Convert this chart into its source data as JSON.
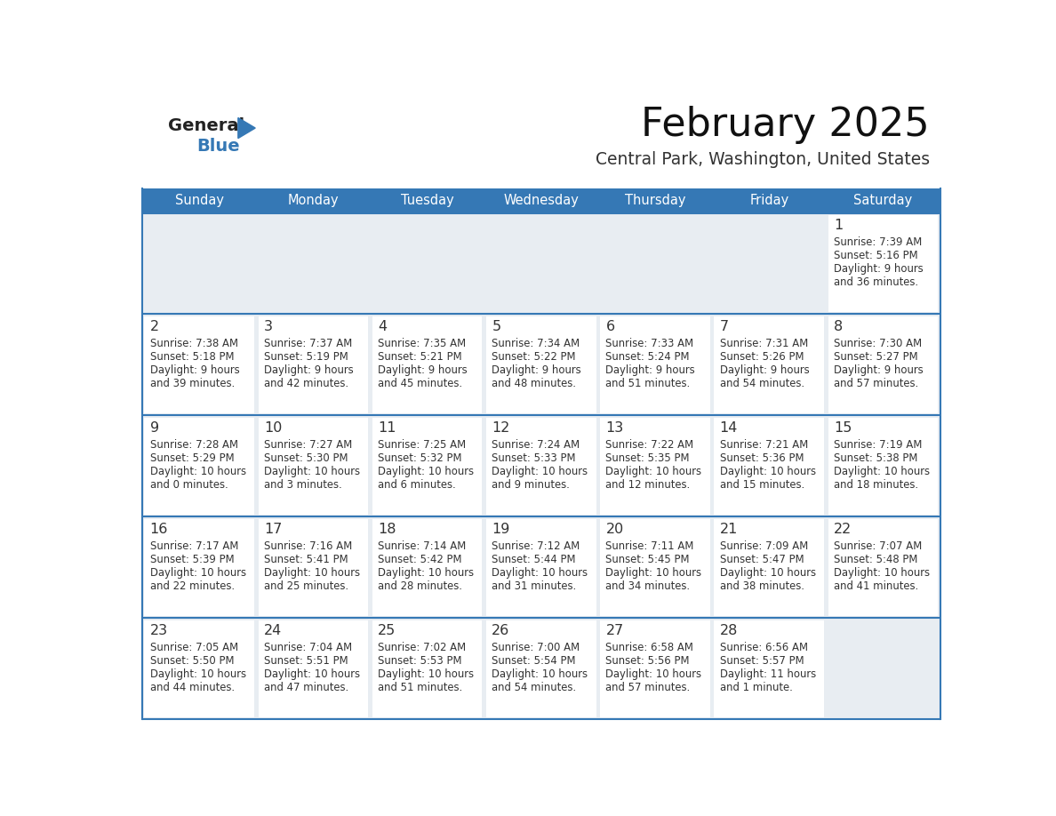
{
  "title": "February 2025",
  "subtitle": "Central Park, Washington, United States",
  "days_of_week": [
    "Sunday",
    "Monday",
    "Tuesday",
    "Wednesday",
    "Thursday",
    "Friday",
    "Saturday"
  ],
  "header_bg": "#3578b5",
  "header_text": "#ffffff",
  "cell_bg_light": "#e8edf2",
  "cell_bg_white": "#ffffff",
  "day_num_color": "#333333",
  "text_color": "#333333",
  "line_color": "#3578b5",
  "logo_general_color": "#222222",
  "logo_blue_color": "#3578b5",
  "logo_triangle_color": "#3578b5",
  "calendar_data": [
    [
      null,
      null,
      null,
      null,
      null,
      null,
      {
        "day": "1",
        "sunrise": "7:39 AM",
        "sunset": "5:16 PM",
        "daylight_line1": "Daylight: 9 hours",
        "daylight_line2": "and 36 minutes."
      }
    ],
    [
      {
        "day": "2",
        "sunrise": "7:38 AM",
        "sunset": "5:18 PM",
        "daylight_line1": "Daylight: 9 hours",
        "daylight_line2": "and 39 minutes."
      },
      {
        "day": "3",
        "sunrise": "7:37 AM",
        "sunset": "5:19 PM",
        "daylight_line1": "Daylight: 9 hours",
        "daylight_line2": "and 42 minutes."
      },
      {
        "day": "4",
        "sunrise": "7:35 AM",
        "sunset": "5:21 PM",
        "daylight_line1": "Daylight: 9 hours",
        "daylight_line2": "and 45 minutes."
      },
      {
        "day": "5",
        "sunrise": "7:34 AM",
        "sunset": "5:22 PM",
        "daylight_line1": "Daylight: 9 hours",
        "daylight_line2": "and 48 minutes."
      },
      {
        "day": "6",
        "sunrise": "7:33 AM",
        "sunset": "5:24 PM",
        "daylight_line1": "Daylight: 9 hours",
        "daylight_line2": "and 51 minutes."
      },
      {
        "day": "7",
        "sunrise": "7:31 AM",
        "sunset": "5:26 PM",
        "daylight_line1": "Daylight: 9 hours",
        "daylight_line2": "and 54 minutes."
      },
      {
        "day": "8",
        "sunrise": "7:30 AM",
        "sunset": "5:27 PM",
        "daylight_line1": "Daylight: 9 hours",
        "daylight_line2": "and 57 minutes."
      }
    ],
    [
      {
        "day": "9",
        "sunrise": "7:28 AM",
        "sunset": "5:29 PM",
        "daylight_line1": "Daylight: 10 hours",
        "daylight_line2": "and 0 minutes."
      },
      {
        "day": "10",
        "sunrise": "7:27 AM",
        "sunset": "5:30 PM",
        "daylight_line1": "Daylight: 10 hours",
        "daylight_line2": "and 3 minutes."
      },
      {
        "day": "11",
        "sunrise": "7:25 AM",
        "sunset": "5:32 PM",
        "daylight_line1": "Daylight: 10 hours",
        "daylight_line2": "and 6 minutes."
      },
      {
        "day": "12",
        "sunrise": "7:24 AM",
        "sunset": "5:33 PM",
        "daylight_line1": "Daylight: 10 hours",
        "daylight_line2": "and 9 minutes."
      },
      {
        "day": "13",
        "sunrise": "7:22 AM",
        "sunset": "5:35 PM",
        "daylight_line1": "Daylight: 10 hours",
        "daylight_line2": "and 12 minutes."
      },
      {
        "day": "14",
        "sunrise": "7:21 AM",
        "sunset": "5:36 PM",
        "daylight_line1": "Daylight: 10 hours",
        "daylight_line2": "and 15 minutes."
      },
      {
        "day": "15",
        "sunrise": "7:19 AM",
        "sunset": "5:38 PM",
        "daylight_line1": "Daylight: 10 hours",
        "daylight_line2": "and 18 minutes."
      }
    ],
    [
      {
        "day": "16",
        "sunrise": "7:17 AM",
        "sunset": "5:39 PM",
        "daylight_line1": "Daylight: 10 hours",
        "daylight_line2": "and 22 minutes."
      },
      {
        "day": "17",
        "sunrise": "7:16 AM",
        "sunset": "5:41 PM",
        "daylight_line1": "Daylight: 10 hours",
        "daylight_line2": "and 25 minutes."
      },
      {
        "day": "18",
        "sunrise": "7:14 AM",
        "sunset": "5:42 PM",
        "daylight_line1": "Daylight: 10 hours",
        "daylight_line2": "and 28 minutes."
      },
      {
        "day": "19",
        "sunrise": "7:12 AM",
        "sunset": "5:44 PM",
        "daylight_line1": "Daylight: 10 hours",
        "daylight_line2": "and 31 minutes."
      },
      {
        "day": "20",
        "sunrise": "7:11 AM",
        "sunset": "5:45 PM",
        "daylight_line1": "Daylight: 10 hours",
        "daylight_line2": "and 34 minutes."
      },
      {
        "day": "21",
        "sunrise": "7:09 AM",
        "sunset": "5:47 PM",
        "daylight_line1": "Daylight: 10 hours",
        "daylight_line2": "and 38 minutes."
      },
      {
        "day": "22",
        "sunrise": "7:07 AM",
        "sunset": "5:48 PM",
        "daylight_line1": "Daylight: 10 hours",
        "daylight_line2": "and 41 minutes."
      }
    ],
    [
      {
        "day": "23",
        "sunrise": "7:05 AM",
        "sunset": "5:50 PM",
        "daylight_line1": "Daylight: 10 hours",
        "daylight_line2": "and 44 minutes."
      },
      {
        "day": "24",
        "sunrise": "7:04 AM",
        "sunset": "5:51 PM",
        "daylight_line1": "Daylight: 10 hours",
        "daylight_line2": "and 47 minutes."
      },
      {
        "day": "25",
        "sunrise": "7:02 AM",
        "sunset": "5:53 PM",
        "daylight_line1": "Daylight: 10 hours",
        "daylight_line2": "and 51 minutes."
      },
      {
        "day": "26",
        "sunrise": "7:00 AM",
        "sunset": "5:54 PM",
        "daylight_line1": "Daylight: 10 hours",
        "daylight_line2": "and 54 minutes."
      },
      {
        "day": "27",
        "sunrise": "6:58 AM",
        "sunset": "5:56 PM",
        "daylight_line1": "Daylight: 10 hours",
        "daylight_line2": "and 57 minutes."
      },
      {
        "day": "28",
        "sunrise": "6:56 AM",
        "sunset": "5:57 PM",
        "daylight_line1": "Daylight: 11 hours",
        "daylight_line2": "and 1 minute."
      },
      null
    ]
  ]
}
